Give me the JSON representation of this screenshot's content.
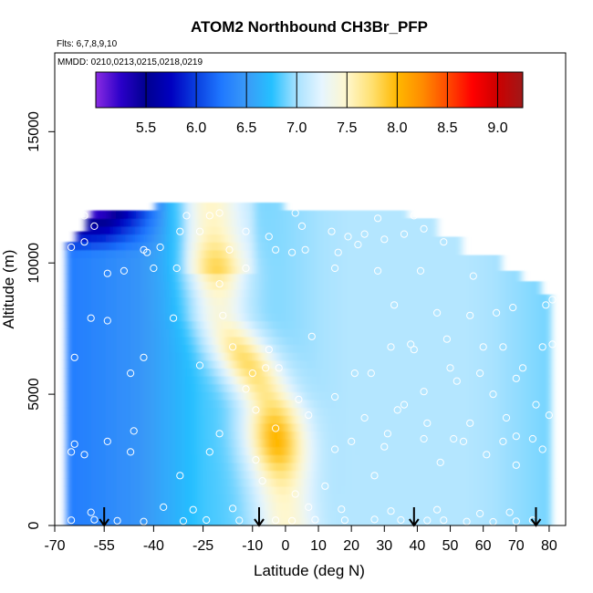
{
  "chart_data": {
    "type": "heatmap",
    "title": "ATOM2 Northbound CH3Br_PFP",
    "flights_note": "Flts: 6,7,8,9,10",
    "dates_note": "MMDD: 0210,0213,0215,0218,0219",
    "xlabel": "Latitude (deg N)",
    "ylabel": "Altitude (m)",
    "xlim": [
      -70,
      85
    ],
    "ylim": [
      0,
      18000
    ],
    "x_ticks": [
      -70,
      -55,
      -40,
      -25,
      -10,
      0,
      10,
      20,
      30,
      40,
      50,
      60,
      70,
      80
    ],
    "x_tick_labels": [
      "-70",
      "-55",
      "-40",
      "-25",
      "-10",
      "0",
      "10",
      "20",
      "30",
      "40",
      "50",
      "60",
      "70",
      "80"
    ],
    "y_ticks": [
      0,
      5000,
      10000,
      15000
    ],
    "y_tick_labels": [
      "0",
      "5000",
      "10000",
      "15000"
    ],
    "colorbar": {
      "range": [
        5.0,
        9.25
      ],
      "tick_values": [
        5.5,
        6.0,
        6.5,
        7.0,
        7.5,
        8.0,
        8.5,
        9.0
      ],
      "tick_labels": [
        "5.5",
        "6.0",
        "6.5",
        "7.0",
        "7.5",
        "8.0",
        "8.5",
        "9.0"
      ],
      "stops": [
        {
          "v": 5.0,
          "c": "#8a2be2"
        },
        {
          "v": 5.25,
          "c": "#2a00c8"
        },
        {
          "v": 5.5,
          "c": "#000090"
        },
        {
          "v": 5.75,
          "c": "#0000c0"
        },
        {
          "v": 6.0,
          "c": "#0a3fe0"
        },
        {
          "v": 6.25,
          "c": "#1f78ff"
        },
        {
          "v": 6.5,
          "c": "#3a9af7"
        },
        {
          "v": 6.75,
          "c": "#25c0ff"
        },
        {
          "v": 7.0,
          "c": "#a8e2ff"
        },
        {
          "v": 7.25,
          "c": "#e6f5ff"
        },
        {
          "v": 7.5,
          "c": "#fff7cc"
        },
        {
          "v": 7.75,
          "c": "#ffe070"
        },
        {
          "v": 8.0,
          "c": "#ffb800"
        },
        {
          "v": 8.25,
          "c": "#ff8c00"
        },
        {
          "v": 8.5,
          "c": "#ff4a00"
        },
        {
          "v": 8.75,
          "c": "#ff0000"
        },
        {
          "v": 9.0,
          "c": "#cc0000"
        },
        {
          "v": 9.25,
          "c": "#a01818"
        }
      ]
    },
    "profile_arrows_lat": [
      -55,
      -8,
      39,
      76
    ],
    "sample_points": [
      [
        -65,
        200
      ],
      [
        -58,
        220
      ],
      [
        -51,
        180
      ],
      [
        -43,
        150
      ],
      [
        -31,
        170
      ],
      [
        -24,
        210
      ],
      [
        -14,
        190
      ],
      [
        -3,
        200
      ],
      [
        2,
        180
      ],
      [
        9,
        220
      ],
      [
        18,
        200
      ],
      [
        27,
        230
      ],
      [
        35,
        210
      ],
      [
        43,
        190
      ],
      [
        48,
        200
      ],
      [
        55,
        150
      ],
      [
        63,
        140
      ],
      [
        70,
        160
      ],
      [
        75,
        200
      ],
      [
        -59,
        500
      ],
      [
        -37,
        700
      ],
      [
        -28,
        600
      ],
      [
        -16,
        650
      ],
      [
        7,
        700
      ],
      [
        17,
        620
      ],
      [
        32,
        550
      ],
      [
        46,
        600
      ],
      [
        59,
        450
      ],
      [
        68,
        500
      ],
      [
        3,
        1200
      ],
      [
        -32,
        1900
      ],
      [
        -7,
        1700
      ],
      [
        12,
        1500
      ],
      [
        27,
        1900
      ],
      [
        47,
        2400
      ],
      [
        61,
        2700
      ],
      [
        70,
        2300
      ],
      [
        -65,
        2800
      ],
      [
        -61,
        2700
      ],
      [
        -47,
        2800
      ],
      [
        -23,
        2800
      ],
      [
        -9,
        2500
      ],
      [
        15,
        2900
      ],
      [
        30,
        3000
      ],
      [
        42,
        3300
      ],
      [
        54,
        3200
      ],
      [
        70,
        3400
      ],
      [
        -64,
        3100
      ],
      [
        -54,
        3200
      ],
      [
        -46,
        3600
      ],
      [
        -20,
        3500
      ],
      [
        -3,
        3700
      ],
      [
        20,
        3200
      ],
      [
        31,
        3500
      ],
      [
        51,
        3300
      ],
      [
        66,
        3200
      ],
      [
        75,
        3300
      ],
      [
        78,
        2900
      ],
      [
        -9,
        4400
      ],
      [
        7,
        4200
      ],
      [
        24,
        4100
      ],
      [
        34,
        4400
      ],
      [
        43,
        3900
      ],
      [
        56,
        3900
      ],
      [
        67,
        4100
      ],
      [
        80,
        4200
      ],
      [
        76,
        4600
      ],
      [
        -12,
        5200
      ],
      [
        4,
        4800
      ],
      [
        15,
        4900
      ],
      [
        36,
        4600
      ],
      [
        42,
        5100
      ],
      [
        52,
        5500
      ],
      [
        63,
        5000
      ],
      [
        70,
        5600
      ],
      [
        -47,
        5800
      ],
      [
        -26,
        6100
      ],
      [
        -10,
        5800
      ],
      [
        -6,
        6000
      ],
      [
        -2,
        6000
      ],
      [
        21,
        5800
      ],
      [
        26,
        5800
      ],
      [
        50,
        6000
      ],
      [
        59,
        5800
      ],
      [
        72,
        6000
      ],
      [
        -43,
        6400
      ],
      [
        -64,
        6400
      ],
      [
        -16,
        6800
      ],
      [
        -5,
        6700
      ],
      [
        8,
        7200
      ],
      [
        32,
        6800
      ],
      [
        39,
        6700
      ],
      [
        38,
        6900
      ],
      [
        49,
        7100
      ],
      [
        60,
        6800
      ],
      [
        66,
        6800
      ],
      [
        78,
        6800
      ],
      [
        81,
        6900
      ],
      [
        -54,
        7800
      ],
      [
        -59,
        7900
      ],
      [
        -34,
        7900
      ],
      [
        -19,
        8000
      ],
      [
        33,
        8400
      ],
      [
        46,
        8100
      ],
      [
        56,
        8000
      ],
      [
        64,
        8100
      ],
      [
        69,
        8300
      ],
      [
        79,
        8400
      ],
      [
        81,
        8600
      ],
      [
        -54,
        9600
      ],
      [
        -49,
        9700
      ],
      [
        -40,
        9800
      ],
      [
        -33,
        9800
      ],
      [
        -20,
        9200
      ],
      [
        -12,
        9800
      ],
      [
        15,
        9800
      ],
      [
        28,
        9700
      ],
      [
        41,
        9700
      ],
      [
        57,
        9500
      ],
      [
        -65,
        10600
      ],
      [
        -61,
        10800
      ],
      [
        -43,
        10500
      ],
      [
        -42,
        10400
      ],
      [
        -38,
        10600
      ],
      [
        -17,
        10500
      ],
      [
        -3,
        10500
      ],
      [
        2,
        10400
      ],
      [
        6,
        10500
      ],
      [
        16,
        10400
      ],
      [
        22,
        10700
      ],
      [
        30,
        10900
      ],
      [
        48,
        10800
      ],
      [
        58,
        10700
      ],
      [
        -58,
        11400
      ],
      [
        -32,
        11200
      ],
      [
        -26,
        11200
      ],
      [
        -12,
        11200
      ],
      [
        -5,
        11000
      ],
      [
        5,
        11400
      ],
      [
        14,
        11200
      ],
      [
        19,
        11000
      ],
      [
        24,
        11100
      ],
      [
        36,
        11100
      ],
      [
        42,
        11300
      ],
      [
        -61,
        11800
      ],
      [
        -30,
        11800
      ],
      [
        -23,
        11800
      ],
      [
        -20,
        11900
      ],
      [
        3,
        11900
      ],
      [
        28,
        11700
      ],
      [
        39,
        11800
      ]
    ]
  }
}
